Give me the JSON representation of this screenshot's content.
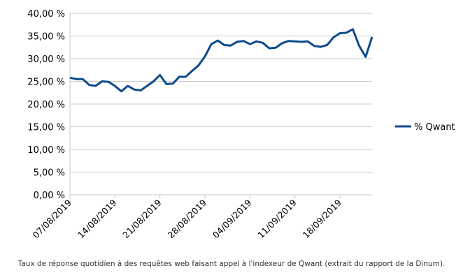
{
  "chart_data": {
    "type": "line",
    "title": "",
    "xlabel": "",
    "ylabel": "",
    "ylim": [
      0,
      40
    ],
    "y_ticks": [
      "0,00 %",
      "5,00 %",
      "10,00 %",
      "15,00 %",
      "20,00 %",
      "25,00 %",
      "30,00 %",
      "35,00 %",
      "40,00 %"
    ],
    "x_ticks": [
      "07/08/2019",
      "14/08/2019",
      "21/08/2019",
      "28/08/2019",
      "04/09/2019",
      "11/09/2019",
      "18/09/2019"
    ],
    "x_start": "07/08/2019",
    "grid": true,
    "legend_position": "right",
    "series": [
      {
        "name": "% Qwant",
        "color": "#0d4a8c",
        "values": [
          25.8,
          25.5,
          25.5,
          24.2,
          24.0,
          25.0,
          24.9,
          24.0,
          22.8,
          24.0,
          23.2,
          23.0,
          24.0,
          25.0,
          26.4,
          24.4,
          24.5,
          26.0,
          26.0,
          27.3,
          28.5,
          30.5,
          33.2,
          34.0,
          33.0,
          32.9,
          33.7,
          33.9,
          33.2,
          33.8,
          33.5,
          32.3,
          32.4,
          33.4,
          33.9,
          33.8,
          33.7,
          33.8,
          32.8,
          32.6,
          33.0,
          34.7,
          35.6,
          35.7,
          36.5,
          32.8,
          30.4,
          34.8
        ]
      }
    ]
  },
  "caption": "Taux de réponse quotidien à des requêtes web faisant appel à l'indexeur de Qwant (extrait du rapport de la Dinum)."
}
